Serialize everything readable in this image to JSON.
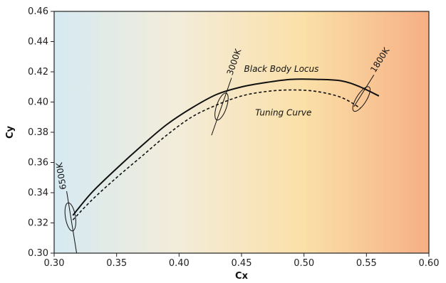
{
  "chart_data": {
    "type": "line",
    "xlabel": "Cx",
    "ylabel": "Cy",
    "xlim": [
      0.3,
      0.6
    ],
    "ylim": [
      0.3,
      0.46
    ],
    "x_ticks": [
      "0.30",
      "0.35",
      "0.40",
      "0.45",
      "0.50",
      "0.55",
      "0.60"
    ],
    "y_ticks": [
      "0.30",
      "0.32",
      "0.34",
      "0.36",
      "0.38",
      "0.40",
      "0.42",
      "0.44",
      "0.46"
    ],
    "grid": false,
    "background_gradient": [
      "#d6eaf2",
      "#f3ecd9",
      "#fbe0a8",
      "#f6af84"
    ],
    "series": [
      {
        "name": "Black Body Locus",
        "style": "solid",
        "color": "#111111",
        "x": [
          0.315,
          0.33,
          0.35,
          0.37,
          0.39,
          0.41,
          0.43,
          0.45,
          0.47,
          0.49,
          0.51,
          0.53,
          0.545,
          0.56
        ],
        "y": [
          0.325,
          0.34,
          0.356,
          0.371,
          0.385,
          0.396,
          0.405,
          0.41,
          0.413,
          0.415,
          0.415,
          0.414,
          0.41,
          0.404
        ]
      },
      {
        "name": "Tuning Curve",
        "style": "dashed",
        "color": "#111111",
        "x": [
          0.315,
          0.33,
          0.35,
          0.37,
          0.39,
          0.41,
          0.43,
          0.45,
          0.47,
          0.49,
          0.51,
          0.53,
          0.545
        ],
        "y": [
          0.322,
          0.335,
          0.35,
          0.364,
          0.378,
          0.39,
          0.398,
          0.404,
          0.407,
          0.408,
          0.407,
          0.403,
          0.396
        ]
      }
    ],
    "cct_markers": [
      {
        "label": "6500K",
        "x": 0.313,
        "y": 0.324,
        "isotherm": [
          [
            0.318,
            0.3
          ],
          [
            0.31,
            0.341
          ]
        ]
      },
      {
        "label": "3000K",
        "x": 0.434,
        "y": 0.397,
        "isotherm": [
          [
            0.426,
            0.378
          ],
          [
            0.442,
            0.416
          ]
        ]
      },
      {
        "label": "1800K",
        "x": 0.546,
        "y": 0.402,
        "isotherm": [
          [
            0.54,
            0.397
          ],
          [
            0.556,
            0.418
          ]
        ]
      }
    ],
    "annotations": [
      {
        "text": "Black Body Locus",
        "x": 0.452,
        "y": 0.42
      },
      {
        "text": "Tuning Curve",
        "x": 0.461,
        "y": 0.391
      }
    ]
  }
}
